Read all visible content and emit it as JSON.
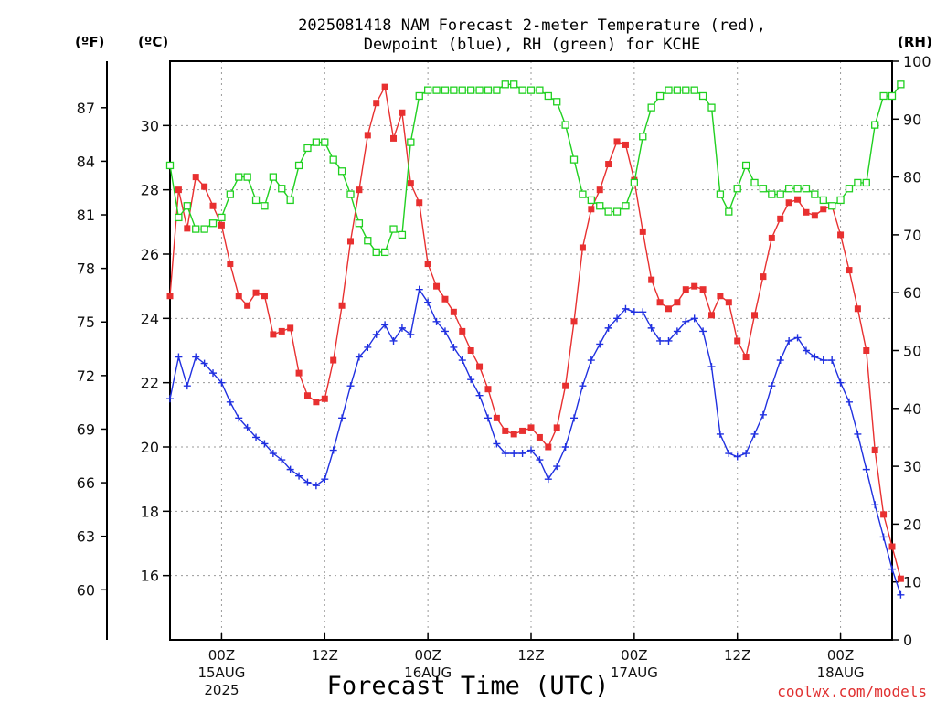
{
  "chart_data": {
    "type": "line",
    "title_line1": "2025081418 NAM Forecast 2-meter Temperature (red),",
    "title_line2": "Dewpoint (blue), RH (green) for KCHE",
    "xlabel": "Forecast Time (UTC)",
    "credit": "coolwx.com/models",
    "left_axis_f": {
      "unit_label": "(ºF)",
      "ticks": [
        60,
        63,
        66,
        69,
        72,
        75,
        78,
        81,
        84,
        87
      ]
    },
    "left_axis_c": {
      "unit_label": "(ºC)",
      "ylim": [
        14,
        32
      ],
      "ticks": [
        16,
        18,
        20,
        22,
        24,
        26,
        28,
        30
      ]
    },
    "right_axis": {
      "unit_label": "(RH)",
      "ylim": [
        0,
        100
      ],
      "ticks": [
        0,
        10,
        20,
        30,
        40,
        50,
        60,
        70,
        80,
        90,
        100
      ]
    },
    "x_hour_range": [
      18,
      102
    ],
    "x_ticks": [
      {
        "hour": 24,
        "label1": "00Z",
        "label2": "15AUG",
        "label3": "2025"
      },
      {
        "hour": 36,
        "label1": "12Z",
        "label2": "",
        "label3": ""
      },
      {
        "hour": 48,
        "label1": "00Z",
        "label2": "16AUG",
        "label3": ""
      },
      {
        "hour": 60,
        "label1": "12Z",
        "label2": "",
        "label3": ""
      },
      {
        "hour": 72,
        "label1": "00Z",
        "label2": "17AUG",
        "label3": ""
      },
      {
        "hour": 84,
        "label1": "12Z",
        "label2": "",
        "label3": ""
      },
      {
        "hour": 96,
        "label1": "00Z",
        "label2": "18AUG",
        "label3": ""
      }
    ],
    "grid": true,
    "series": [
      {
        "name": "Temperature",
        "color": "#e83030",
        "marker": "filled-square",
        "axis": "celsius",
        "values": [
          24.7,
          28.0,
          26.8,
          28.4,
          28.1,
          27.5,
          26.9,
          25.7,
          24.7,
          24.4,
          24.8,
          24.7,
          23.5,
          23.6,
          23.7,
          22.3,
          21.6,
          21.4,
          21.5,
          22.7,
          24.4,
          26.4,
          28.0,
          29.7,
          30.7,
          31.2,
          29.6,
          30.4,
          28.2,
          27.6,
          25.7,
          25.0,
          24.6,
          24.2,
          23.6,
          23.0,
          22.5,
          21.8,
          20.9,
          20.5,
          20.4,
          20.5,
          20.6,
          20.3,
          20.0,
          20.6,
          21.9,
          23.9,
          26.2,
          27.4,
          28.0,
          28.8,
          29.5,
          29.4,
          28.3,
          26.7,
          25.2,
          24.5,
          24.3,
          24.5,
          24.9,
          25.0,
          24.9,
          24.1,
          24.7,
          24.5,
          23.3,
          22.8,
          24.1,
          25.3,
          26.5,
          27.1,
          27.6,
          27.7,
          27.3,
          27.2,
          27.4,
          27.5,
          26.6,
          25.5,
          24.3,
          23.0,
          19.9,
          17.9,
          16.9,
          15.9
        ]
      },
      {
        "name": "Dewpoint",
        "color": "#2030e0",
        "marker": "plus",
        "axis": "celsius",
        "values": [
          21.5,
          22.8,
          21.9,
          22.8,
          22.6,
          22.3,
          22.0,
          21.4,
          20.9,
          20.6,
          20.3,
          20.1,
          19.8,
          19.6,
          19.3,
          19.1,
          18.9,
          18.8,
          19.0,
          19.9,
          20.9,
          21.9,
          22.8,
          23.1,
          23.5,
          23.8,
          23.3,
          23.7,
          23.5,
          24.9,
          24.5,
          23.9,
          23.6,
          23.1,
          22.7,
          22.1,
          21.6,
          20.9,
          20.1,
          19.8,
          19.8,
          19.8,
          19.9,
          19.6,
          19.0,
          19.4,
          20.0,
          20.9,
          21.9,
          22.7,
          23.2,
          23.7,
          24.0,
          24.3,
          24.2,
          24.2,
          23.7,
          23.3,
          23.3,
          23.6,
          23.9,
          24.0,
          23.6,
          22.5,
          20.4,
          19.8,
          19.7,
          19.8,
          20.4,
          21.0,
          21.9,
          22.7,
          23.3,
          23.4,
          23.0,
          22.8,
          22.7,
          22.7,
          22.0,
          21.4,
          20.4,
          19.3,
          18.2,
          17.2,
          16.2,
          15.4
        ]
      },
      {
        "name": "RH",
        "color": "#20d020",
        "marker": "open-square",
        "axis": "rh",
        "values": [
          82,
          73,
          75,
          71,
          71,
          72,
          73,
          77,
          80,
          80,
          76,
          75,
          80,
          78,
          76,
          82,
          85,
          86,
          86,
          83,
          81,
          77,
          72,
          69,
          67,
          67,
          71,
          70,
          86,
          94,
          95,
          95,
          95,
          95,
          95,
          95,
          95,
          95,
          95,
          96,
          96,
          95,
          95,
          95,
          94,
          93,
          89,
          83,
          77,
          76,
          75,
          74,
          74,
          75,
          79,
          87,
          92,
          94,
          95,
          95,
          95,
          95,
          94,
          92,
          77,
          74,
          78,
          82,
          79,
          78,
          77,
          77,
          78,
          78,
          78,
          77,
          76,
          75,
          76,
          78,
          79,
          79,
          89,
          94,
          94,
          96
        ]
      }
    ]
  }
}
